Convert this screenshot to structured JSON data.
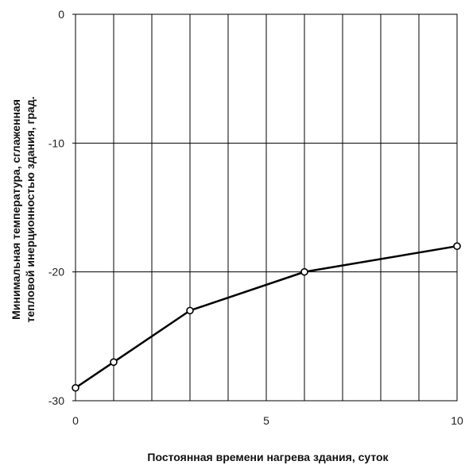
{
  "chart_data": {
    "type": "line",
    "title": "",
    "xlabel": "Постоянная времени нагрева здания, суток",
    "ylabel_line1": "Минимальная температура, сглаженная",
    "ylabel_line2": "тепловой инерционностью здания, град.",
    "xlim": [
      0,
      10
    ],
    "ylim": [
      -30,
      0
    ],
    "x_ticks": [
      0,
      5,
      10
    ],
    "y_ticks": [
      0,
      -10,
      -20,
      -30
    ],
    "x_tick_labels": [
      "0",
      "5",
      "10"
    ],
    "y_tick_labels": [
      "0",
      "-10",
      "-20",
      "-30"
    ],
    "grid": true,
    "x_grid_step": 1,
    "y_grid_values": [
      -10,
      -20
    ],
    "series": [
      {
        "x": [
          0,
          1,
          3,
          6,
          10
        ],
        "y": [
          -29,
          -27,
          -23,
          -20,
          -18
        ]
      }
    ],
    "colors": {
      "line": "#000000",
      "grid": "#000000",
      "marker_fill": "#ffffff"
    }
  }
}
